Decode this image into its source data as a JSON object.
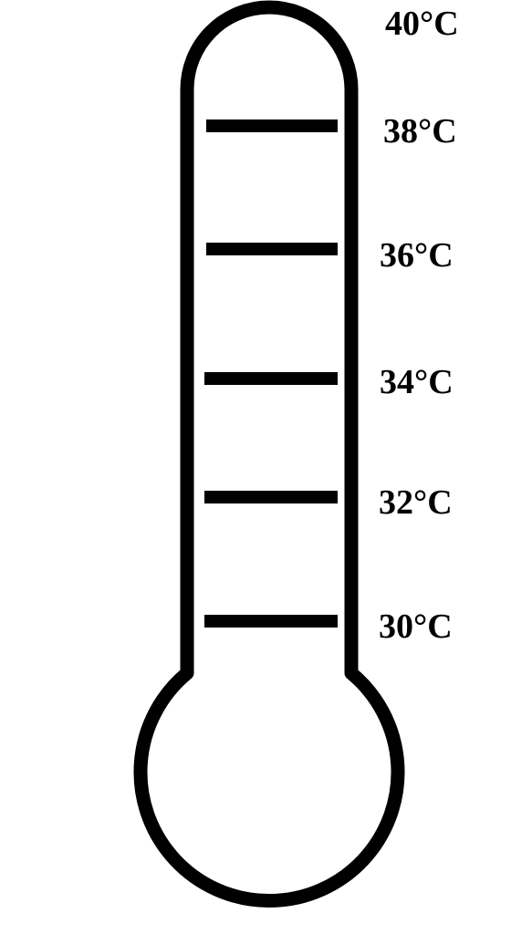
{
  "thermometer": {
    "unit": "°C",
    "outline_color": "#000000",
    "fill_color": "#ffffff",
    "scale_labels": [
      "40°C",
      "38°C",
      "36°C",
      "34°C",
      "32°C",
      "30°C"
    ],
    "tick_values": [
      38,
      36,
      34,
      32,
      30
    ]
  }
}
